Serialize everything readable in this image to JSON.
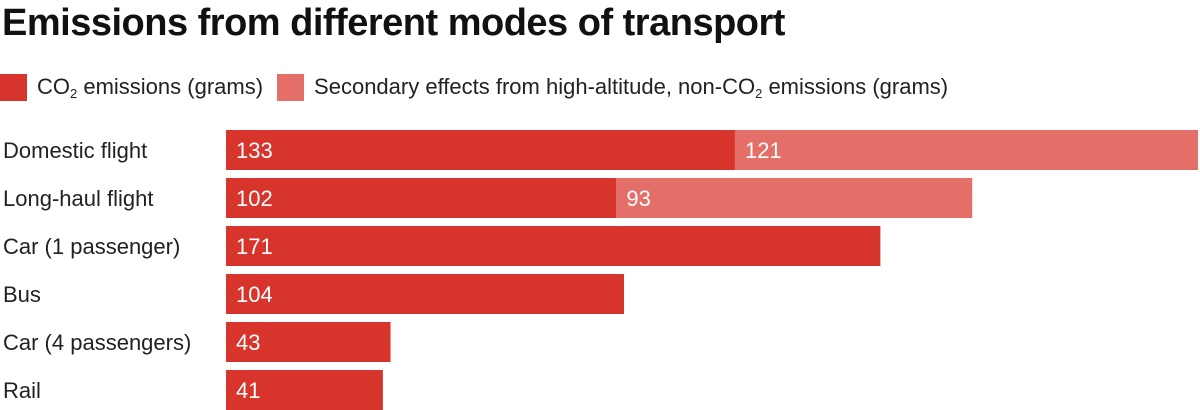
{
  "chart_data": {
    "type": "bar",
    "orientation": "horizontal",
    "stacked": true,
    "title": "Emissions from different modes of transport",
    "categories": [
      "Domestic flight",
      "Long-haul flight",
      "Car (1 passenger)",
      "Bus",
      "Car (4 passengers)",
      "Rail"
    ],
    "series": [
      {
        "name": "CO2 emissions (grams)",
        "legend_parts": [
          "CO",
          "2",
          " emissions (grams)"
        ],
        "color": "#d7352c",
        "values": [
          133,
          102,
          171,
          104,
          43,
          41
        ]
      },
      {
        "name": "Secondary effects from high-altitude, non-CO2 emissions (grams)",
        "legend_parts": [
          "Secondary effects from high-altitude, non-CO",
          "2",
          " emissions (grams)"
        ],
        "color": "#e46e68",
        "values": [
          121,
          93,
          null,
          null,
          null,
          null
        ]
      }
    ],
    "xlim": [
      0,
      255
    ],
    "legend_position": "top-left",
    "grid": false
  }
}
